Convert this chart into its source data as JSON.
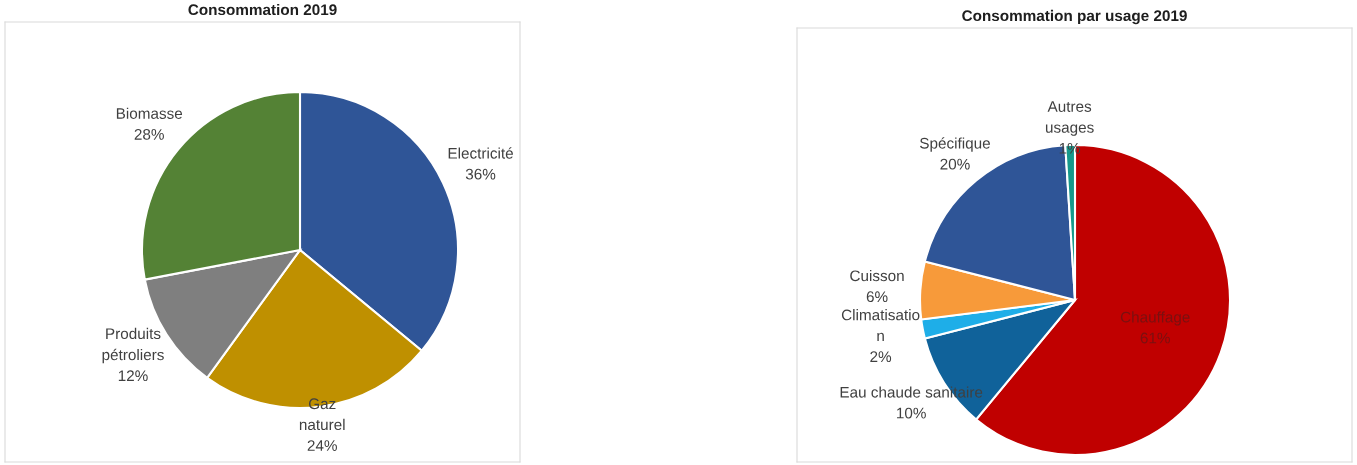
{
  "chart_data": [
    {
      "type": "pie",
      "title": "Consommation 2019",
      "categories": [
        "Electricité",
        "Gaz\nnaturel",
        "Produits\npétroliers",
        "Biomasse"
      ],
      "values": [
        36,
        24,
        12,
        28
      ],
      "value_labels": [
        "36%",
        "24%",
        "12%",
        "28%"
      ],
      "colors": [
        "#2f5597",
        "#bf9000",
        "#7f7f7f",
        "#548235"
      ]
    },
    {
      "type": "pie",
      "title": "Consommation par usage 2019",
      "categories": [
        "Chauffage",
        "Eau chaude sanitaire",
        "Climatisatio\nn",
        "Cuisson",
        "Spécifique",
        "Autres\nusages"
      ],
      "values": [
        61,
        10,
        2,
        6,
        20,
        1
      ],
      "value_labels": [
        "61%",
        "10%",
        "2%",
        "6%",
        "20%",
        "1%"
      ],
      "colors": [
        "#c00000",
        "#10629a",
        "#1eaee8",
        "#f79a3a",
        "#2f5597",
        "#16998b"
      ]
    }
  ]
}
